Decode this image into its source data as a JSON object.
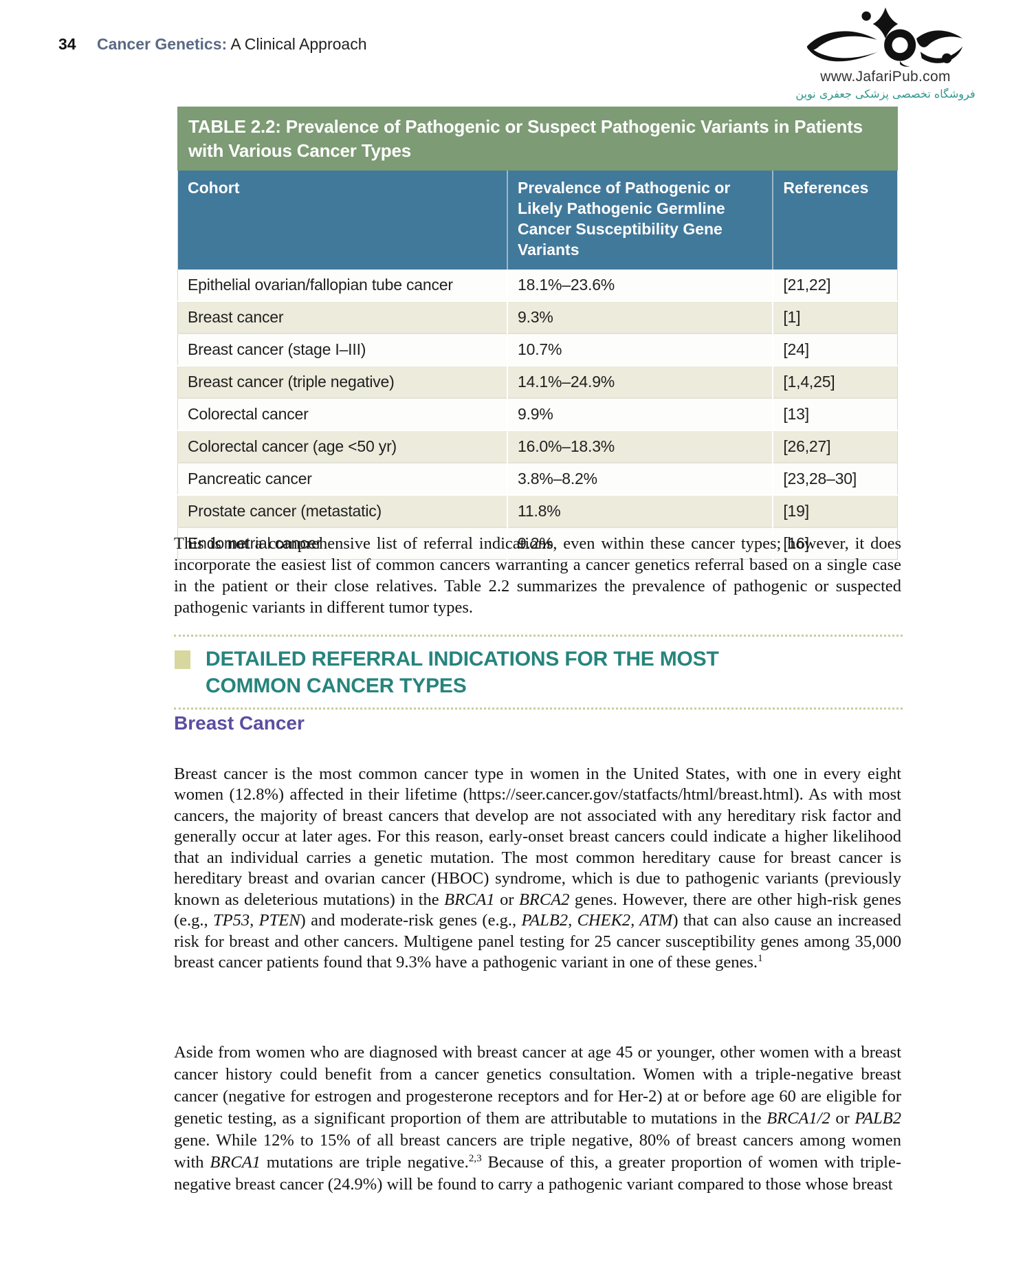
{
  "colors": {
    "table_title_bg": "#7d9b74",
    "table_header_bg": "#41799b",
    "row_alt_bg": "#ecebdc",
    "section_heading": "#26847d",
    "subheading_purple": "#5b4ea1",
    "book_title_slate": "#5a6a84",
    "persian_teal": "#2e958b",
    "dotted_rule": "#c9cc9b"
  },
  "page": {
    "number": "34",
    "book_title": "Cancer Genetics:",
    "book_subtitle": "A Clinical Approach"
  },
  "branding": {
    "website": "www.JafariPub.com",
    "persian_tagline": "فروشگاه تخصصی پزشکی جعفری نوین"
  },
  "table": {
    "title": "TABLE 2.2: Prevalence of Pathogenic or Suspect Pathogenic Variants in Patients with Various Cancer Types",
    "columns": [
      "Cohort",
      "Prevalence of Pathogenic or Likely Pathogenic Germline Cancer Susceptibility Gene Variants",
      "References"
    ],
    "rows": [
      [
        "Epithelial ovarian/fallopian tube cancer",
        "18.1%–23.6%",
        "[21,22]"
      ],
      [
        "Breast cancer",
        "9.3%",
        "[1]"
      ],
      [
        "Breast cancer (stage I–III)",
        "10.7%",
        "[24]"
      ],
      [
        "Breast cancer (triple negative)",
        "14.1%–24.9%",
        "[1,4,25]"
      ],
      [
        "Colorectal cancer",
        "9.9%",
        "[13]"
      ],
      [
        "Colorectal cancer (age <50 yr)",
        "16.0%–18.3%",
        "[26,27]"
      ],
      [
        "Pancreatic cancer",
        "3.8%–8.2%",
        "[23,28–30]"
      ],
      [
        "Prostate cancer (metastatic)",
        "11.8%",
        "[19]"
      ],
      [
        "Endometrial cancer",
        "9.2%",
        "[16]"
      ]
    ]
  },
  "intro_paragraph": "This is not a comprehensive list of referral indications, even within these cancer types; however, it does incorporate the easiest list of common cancers warranting a cancer genetics referral based on a single case in the patient or their close relatives. Table 2.2 summarizes the prevalence of pathogenic or suspected pathogenic variants in different tumor types.",
  "section": {
    "heading": "DETAILED REFERRAL INDICATIONS FOR THE MOST COMMON CANCER TYPES",
    "subheading": "Breast Cancer"
  },
  "paragraphs": {
    "breast1": [
      {
        "t": "Breast cancer is the most common cancer type in women in the United States, with one in every eight women (12.8%) affected in their lifetime (https://seer.cancer.gov/statfacts/html/breast.html). As with most cancers, the majority of breast cancers that develop are not associated with any hereditary risk factor and generally occur at later ages. For this reason, early-onset breast cancers could indicate a higher likelihood that an individual carries a genetic mutation. The most common hereditary cause for breast cancer is hereditary breast and ovarian cancer (HBOC) syndrome, which is due to pathogenic variants (previously known as deleterious mutations) in the "
      },
      {
        "t": "BRCA1",
        "s": "i"
      },
      {
        "t": " or "
      },
      {
        "t": "BRCA2",
        "s": "i"
      },
      {
        "t": " genes. However, there are other high-risk genes (e.g., "
      },
      {
        "t": "TP53, PTEN",
        "s": "i"
      },
      {
        "t": ") and moderate-risk genes (e.g., "
      },
      {
        "t": "PALB2, CHEK2, ATM",
        "s": "i"
      },
      {
        "t": ") that can also cause an increased risk for breast and other cancers. Multigene panel testing for 25 cancer susceptibility genes among 35,000 breast cancer patients found that 9.3% have a pathogenic variant in one of these genes."
      },
      {
        "t": "1",
        "s": "sup"
      }
    ],
    "breast2": [
      {
        "t": "Aside from women who are diagnosed with breast cancer at age 45 or younger, other women with a breast cancer history could benefit from a cancer genetics consultation. Women with a triple-negative breast cancer (negative for estrogen and progesterone receptors and for Her-2) at or before age 60 are eligible for genetic testing, as a significant proportion of them are attributable to mutations in the "
      },
      {
        "t": "BRCA1/2",
        "s": "i"
      },
      {
        "t": " or "
      },
      {
        "t": "PALB2",
        "s": "i"
      },
      {
        "t": " gene. While 12% to 15% of all breast cancers are triple negative, 80% of breast cancers among women with "
      },
      {
        "t": "BRCA1",
        "s": "i"
      },
      {
        "t": " mutations are triple negative."
      },
      {
        "t": "2,3",
        "s": "sup"
      },
      {
        "t": " Because of this, a greater proportion of women with triple-negative breast cancer (24.9%) will be found to carry a pathogenic variant compared to those whose breast"
      }
    ]
  }
}
